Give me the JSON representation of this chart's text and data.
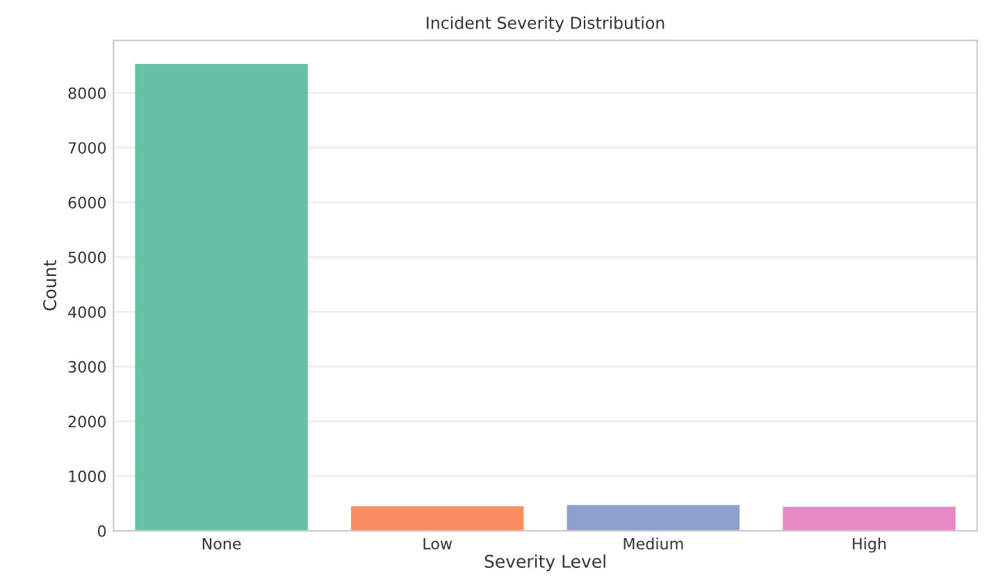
{
  "chart_data": {
    "type": "bar",
    "title": "Incident Severity Distribution",
    "xlabel": "Severity Level",
    "ylabel": "Count",
    "categories": [
      "None",
      "Low",
      "Medium",
      "High"
    ],
    "values": [
      8530,
      450,
      470,
      440
    ],
    "colors": [
      "#66c2a5",
      "#fc8d62",
      "#8da0cb",
      "#e78ac3"
    ],
    "ylim": [
      0,
      8960
    ],
    "yticks": [
      0,
      1000,
      2000,
      3000,
      4000,
      5000,
      6000,
      7000,
      8000
    ],
    "grid": "y"
  }
}
